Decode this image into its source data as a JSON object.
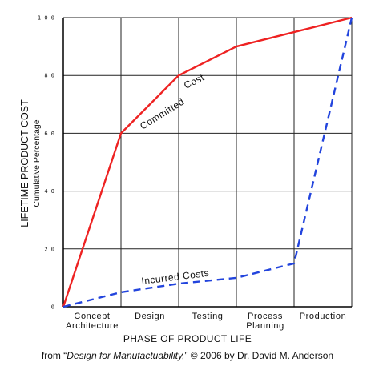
{
  "chart_data": {
    "type": "line",
    "title": "",
    "ylabel": "LIFETIME PRODUCT COST",
    "ylabel_sub": "Cumulative Percentage",
    "xlabel": "PHASE OF PRODUCT LIFE",
    "credit": {
      "prefix": "from “",
      "title": "Design for Manufactuability,",
      "suffix": "” © 2006 by Dr. David M. Anderson"
    },
    "ylim": [
      0,
      100
    ],
    "yticks": [
      0,
      20,
      40,
      60,
      80,
      100
    ],
    "ytick_labels": [
      "0",
      "2 0",
      "4 0",
      "6 0",
      "8 0",
      "1 0 0"
    ],
    "categories": [
      [
        "Concept",
        "Architecture"
      ],
      [
        "Design"
      ],
      [
        "Testing"
      ],
      [
        "Process",
        "Planning"
      ],
      [
        "Production"
      ]
    ],
    "x_range": [
      0,
      5
    ],
    "grid": true,
    "series": [
      {
        "name": "Committed Cost",
        "label_parts": [
          "Committed",
          "Cost"
        ],
        "color": "#ee2222",
        "style": "solid",
        "points": [
          [
            0,
            0
          ],
          [
            1,
            60
          ],
          [
            2,
            80
          ],
          [
            3,
            90
          ],
          [
            4,
            95
          ],
          [
            5,
            100
          ]
        ]
      },
      {
        "name": "Incurred Costs",
        "color": "#2244dd",
        "style": "dashed",
        "points": [
          [
            0,
            0
          ],
          [
            1,
            5
          ],
          [
            2,
            8
          ],
          [
            3,
            10
          ],
          [
            4,
            15
          ],
          [
            5,
            100
          ]
        ]
      }
    ]
  }
}
